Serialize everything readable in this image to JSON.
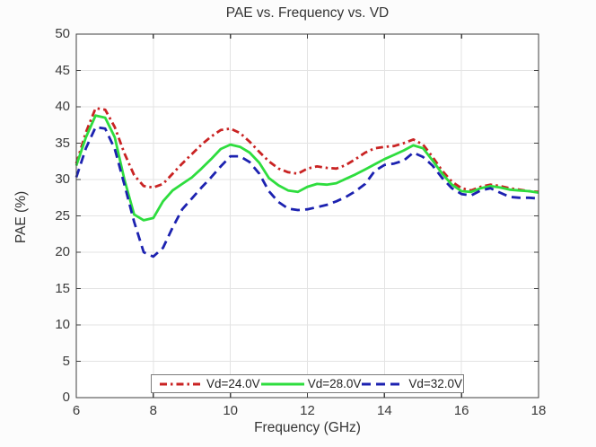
{
  "title": "PAE vs. Frequency vs. VD",
  "xlabel": "Frequency (GHz)",
  "ylabel": "PAE (%)",
  "chart_data": {
    "type": "line",
    "xlim": [
      6,
      18
    ],
    "ylim": [
      0,
      50
    ],
    "x_ticks": [
      6,
      8,
      10,
      12,
      14,
      16,
      18
    ],
    "y_ticks": [
      0,
      5,
      10,
      15,
      20,
      25,
      30,
      35,
      40,
      45,
      50
    ],
    "grid": true,
    "legend_position": "south-inside",
    "axis_color": "#3f3f3f",
    "grid_color": "#e3e3e3",
    "legend_border_color": "#7d7d7d",
    "x": [
      6,
      6.25,
      6.5,
      6.75,
      7,
      7.25,
      7.5,
      7.75,
      8,
      8.25,
      8.5,
      8.75,
      9,
      9.25,
      9.5,
      9.75,
      10,
      10.25,
      10.5,
      10.75,
      11,
      11.25,
      11.5,
      11.75,
      12,
      12.25,
      12.5,
      12.75,
      13,
      13.25,
      13.5,
      13.75,
      14,
      14.25,
      14.5,
      14.75,
      15,
      15.25,
      15.5,
      15.75,
      16,
      16.25,
      16.5,
      16.75,
      17,
      17.25,
      17.5,
      17.75,
      18
    ],
    "series": [
      {
        "name": "Vd=24.0V",
        "color": "#c92323",
        "style": "dash-dot",
        "values": [
          32.2,
          36.5,
          39.8,
          39.6,
          37.2,
          33.6,
          30.6,
          29.1,
          28.9,
          29.4,
          30.8,
          32.2,
          33.5,
          34.8,
          35.9,
          36.8,
          37.0,
          36.4,
          35.2,
          33.8,
          32.5,
          31.5,
          31.0,
          30.8,
          31.5,
          31.8,
          31.6,
          31.5,
          32.0,
          32.8,
          33.7,
          34.3,
          34.5,
          34.6,
          35.0,
          35.5,
          34.8,
          33.1,
          31.2,
          29.7,
          28.8,
          28.5,
          29.0,
          29.3,
          29.1,
          28.8,
          28.6,
          28.4,
          28.3
        ]
      },
      {
        "name": "Vd=28.0V",
        "color": "#2edd3e",
        "style": "solid",
        "values": [
          31.9,
          35.8,
          38.8,
          38.5,
          35.8,
          30.0,
          25.2,
          24.4,
          24.7,
          27.0,
          28.5,
          29.4,
          30.3,
          31.5,
          32.8,
          34.2,
          34.8,
          34.5,
          33.7,
          32.3,
          30.2,
          29.2,
          28.5,
          28.3,
          29.0,
          29.4,
          29.3,
          29.5,
          30.1,
          30.7,
          31.4,
          32.1,
          32.8,
          33.4,
          34.0,
          34.7,
          34.3,
          32.6,
          30.8,
          29.3,
          28.4,
          28.3,
          28.8,
          29.1,
          28.9,
          28.6,
          28.5,
          28.4,
          28.2
        ]
      },
      {
        "name": "Vd=32.0V",
        "color": "#1c22b0",
        "style": "dashed",
        "values": [
          30.3,
          34.3,
          37.2,
          37.0,
          34.2,
          29.3,
          24.2,
          20.0,
          19.4,
          20.6,
          23.4,
          25.9,
          27.4,
          28.9,
          30.3,
          31.8,
          33.2,
          33.2,
          32.4,
          30.8,
          28.4,
          26.9,
          26.0,
          25.8,
          25.9,
          26.2,
          26.5,
          27.0,
          27.6,
          28.4,
          29.4,
          31.2,
          32.0,
          32.2,
          32.6,
          33.7,
          33.1,
          31.9,
          30.2,
          28.8,
          28.0,
          27.8,
          28.5,
          28.8,
          28.2,
          27.6,
          27.5,
          27.5,
          27.4
        ]
      }
    ]
  }
}
